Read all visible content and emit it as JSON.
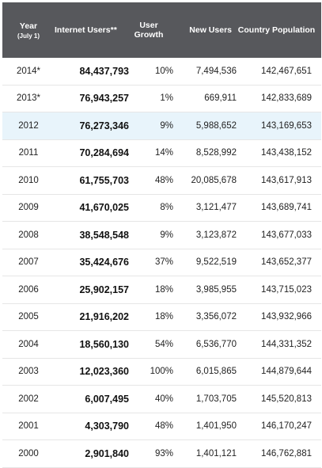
{
  "header": {
    "year": "Year",
    "year_sub": "(July 1)",
    "internet_users": "Internet Users**",
    "user_growth_line1": "User",
    "user_growth_line2": "Growth",
    "new_users": "New Users",
    "country_population": "Country Population"
  },
  "rows": [
    {
      "year": "2014*",
      "users": "84,437,793",
      "growth": "10%",
      "new_users": "7,494,536",
      "population": "142,467,651"
    },
    {
      "year": "2013*",
      "users": "76,943,257",
      "growth": "1%",
      "new_users": "669,911",
      "population": "142,833,689"
    },
    {
      "year": "2012",
      "users": "76,273,346",
      "growth": "9%",
      "new_users": "5,988,652",
      "population": "143,169,653"
    },
    {
      "year": "2011",
      "users": "70,284,694",
      "growth": "14%",
      "new_users": "8,528,992",
      "population": "143,438,152"
    },
    {
      "year": "2010",
      "users": "61,755,703",
      "growth": "48%",
      "new_users": "20,085,678",
      "population": "143,617,913"
    },
    {
      "year": "2009",
      "users": "41,670,025",
      "growth": "8%",
      "new_users": "3,121,477",
      "population": "143,689,741"
    },
    {
      "year": "2008",
      "users": "38,548,548",
      "growth": "9%",
      "new_users": "3,123,872",
      "population": "143,677,033"
    },
    {
      "year": "2007",
      "users": "35,424,676",
      "growth": "37%",
      "new_users": "9,522,519",
      "population": "143,652,377"
    },
    {
      "year": "2006",
      "users": "25,902,157",
      "growth": "18%",
      "new_users": "3,985,955",
      "population": "143,715,023"
    },
    {
      "year": "2005",
      "users": "21,916,202",
      "growth": "18%",
      "new_users": "3,356,072",
      "population": "143,932,966"
    },
    {
      "year": "2004",
      "users": "18,560,130",
      "growth": "54%",
      "new_users": "6,536,770",
      "population": "144,331,352"
    },
    {
      "year": "2003",
      "users": "12,023,360",
      "growth": "100%",
      "new_users": "6,015,865",
      "population": "144,879,644"
    },
    {
      "year": "2002",
      "users": "6,007,495",
      "growth": "40%",
      "new_users": "1,703,705",
      "population": "145,520,813"
    },
    {
      "year": "2001",
      "users": "4,303,790",
      "growth": "48%",
      "new_users": "1,401,950",
      "population": "146,170,247"
    },
    {
      "year": "2000",
      "users": "2,901,840",
      "growth": "93%",
      "new_users": "1,401,121",
      "population": "146,762,881"
    }
  ],
  "highlight_row": "2012",
  "colors": {
    "header_bg": "#57585c",
    "highlight_bg": "#e8f4fb"
  }
}
